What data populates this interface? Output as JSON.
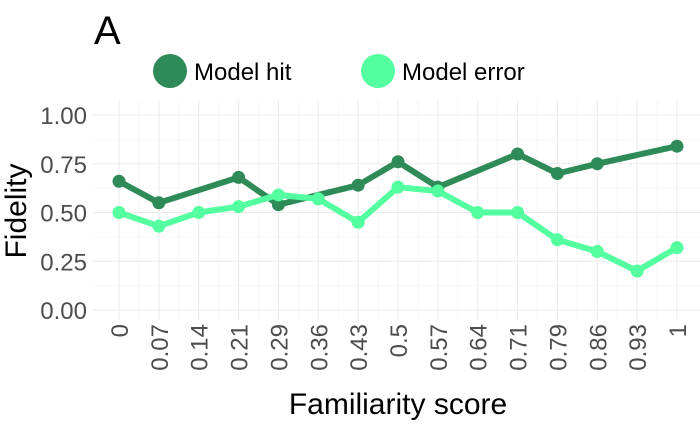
{
  "panel_tag": "A",
  "chart_data": {
    "type": "line",
    "title": "",
    "xlabel": "Familiarity score",
    "ylabel": "Fidelity",
    "categories": [
      "0",
      "0.07",
      "0.14",
      "0.21",
      "0.29",
      "0.36",
      "0.43",
      "0.5",
      "0.57",
      "0.64",
      "0.71",
      "0.79",
      "0.86",
      "0.93",
      "1"
    ],
    "ylim": [
      0,
      1
    ],
    "yticks": [
      "0.00",
      "0.25",
      "0.50",
      "0.75",
      "1.00"
    ],
    "grid": true,
    "legend": "top",
    "series": [
      {
        "name": "Model hit",
        "color": "#2e8b57",
        "values": [
          0.66,
          0.55,
          null,
          0.68,
          0.54,
          null,
          0.64,
          0.76,
          0.63,
          null,
          0.8,
          0.7,
          0.75,
          null,
          0.84
        ]
      },
      {
        "name": "Model error",
        "color": "#54ff9f",
        "values": [
          0.5,
          0.43,
          0.5,
          0.53,
          0.59,
          0.57,
          0.45,
          0.63,
          0.61,
          0.5,
          0.5,
          0.36,
          0.3,
          0.2,
          0.32
        ]
      }
    ]
  }
}
